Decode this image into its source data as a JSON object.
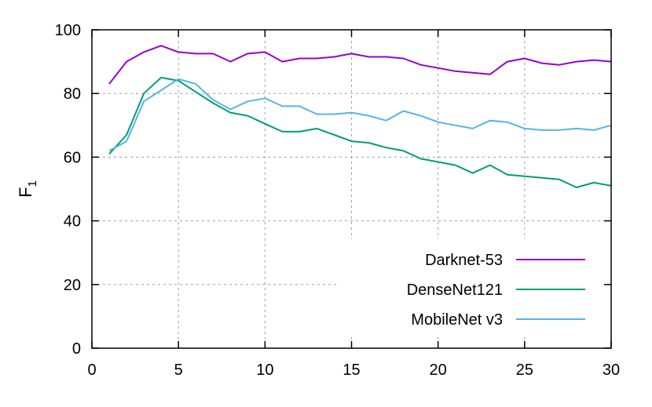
{
  "chart_data": {
    "type": "line",
    "title": "",
    "xlabel": "",
    "ylabel": "F",
    "ylabel_subscript": "1",
    "xlim": [
      0,
      30
    ],
    "ylim": [
      0,
      100
    ],
    "xticks": [
      0,
      5,
      10,
      15,
      20,
      25,
      30
    ],
    "yticks": [
      0,
      20,
      40,
      60,
      80,
      100
    ],
    "grid": true,
    "legend_position": "bottom-right",
    "x": [
      1,
      2,
      3,
      4,
      5,
      6,
      7,
      8,
      9,
      10,
      11,
      12,
      13,
      14,
      15,
      16,
      17,
      18,
      19,
      20,
      21,
      22,
      23,
      24,
      25,
      26,
      27,
      28,
      29,
      30
    ],
    "series": [
      {
        "name": "Darknet-53",
        "color": "#9400d3",
        "values": [
          83,
          90,
          93,
          95,
          93,
          92.5,
          92.5,
          90,
          92.5,
          93,
          90,
          91,
          91,
          91.5,
          92.5,
          91.5,
          91.5,
          91,
          89,
          88,
          87,
          86.5,
          86,
          90,
          91,
          89.5,
          89,
          90,
          90.5,
          90
        ]
      },
      {
        "name": "DenseNet121",
        "color": "#009e73",
        "values": [
          61,
          67,
          80,
          85,
          84,
          80.5,
          77,
          74,
          73,
          70.5,
          68,
          68,
          69,
          67,
          65,
          64.5,
          63,
          62,
          59.5,
          58.5,
          57.5,
          55,
          57.5,
          54.5,
          54,
          53.5,
          53,
          50.5,
          52,
          51
        ]
      },
      {
        "name": "MobileNet v3",
        "color": "#56b4e9",
        "values": [
          62,
          65,
          77.5,
          81,
          84.5,
          83,
          78,
          75,
          77.5,
          78.5,
          76,
          76,
          73.5,
          73.5,
          74,
          73,
          71.5,
          74.5,
          73,
          71,
          70,
          69,
          71.5,
          71,
          69,
          68.5,
          68.5,
          69,
          68.5,
          70
        ]
      }
    ]
  }
}
